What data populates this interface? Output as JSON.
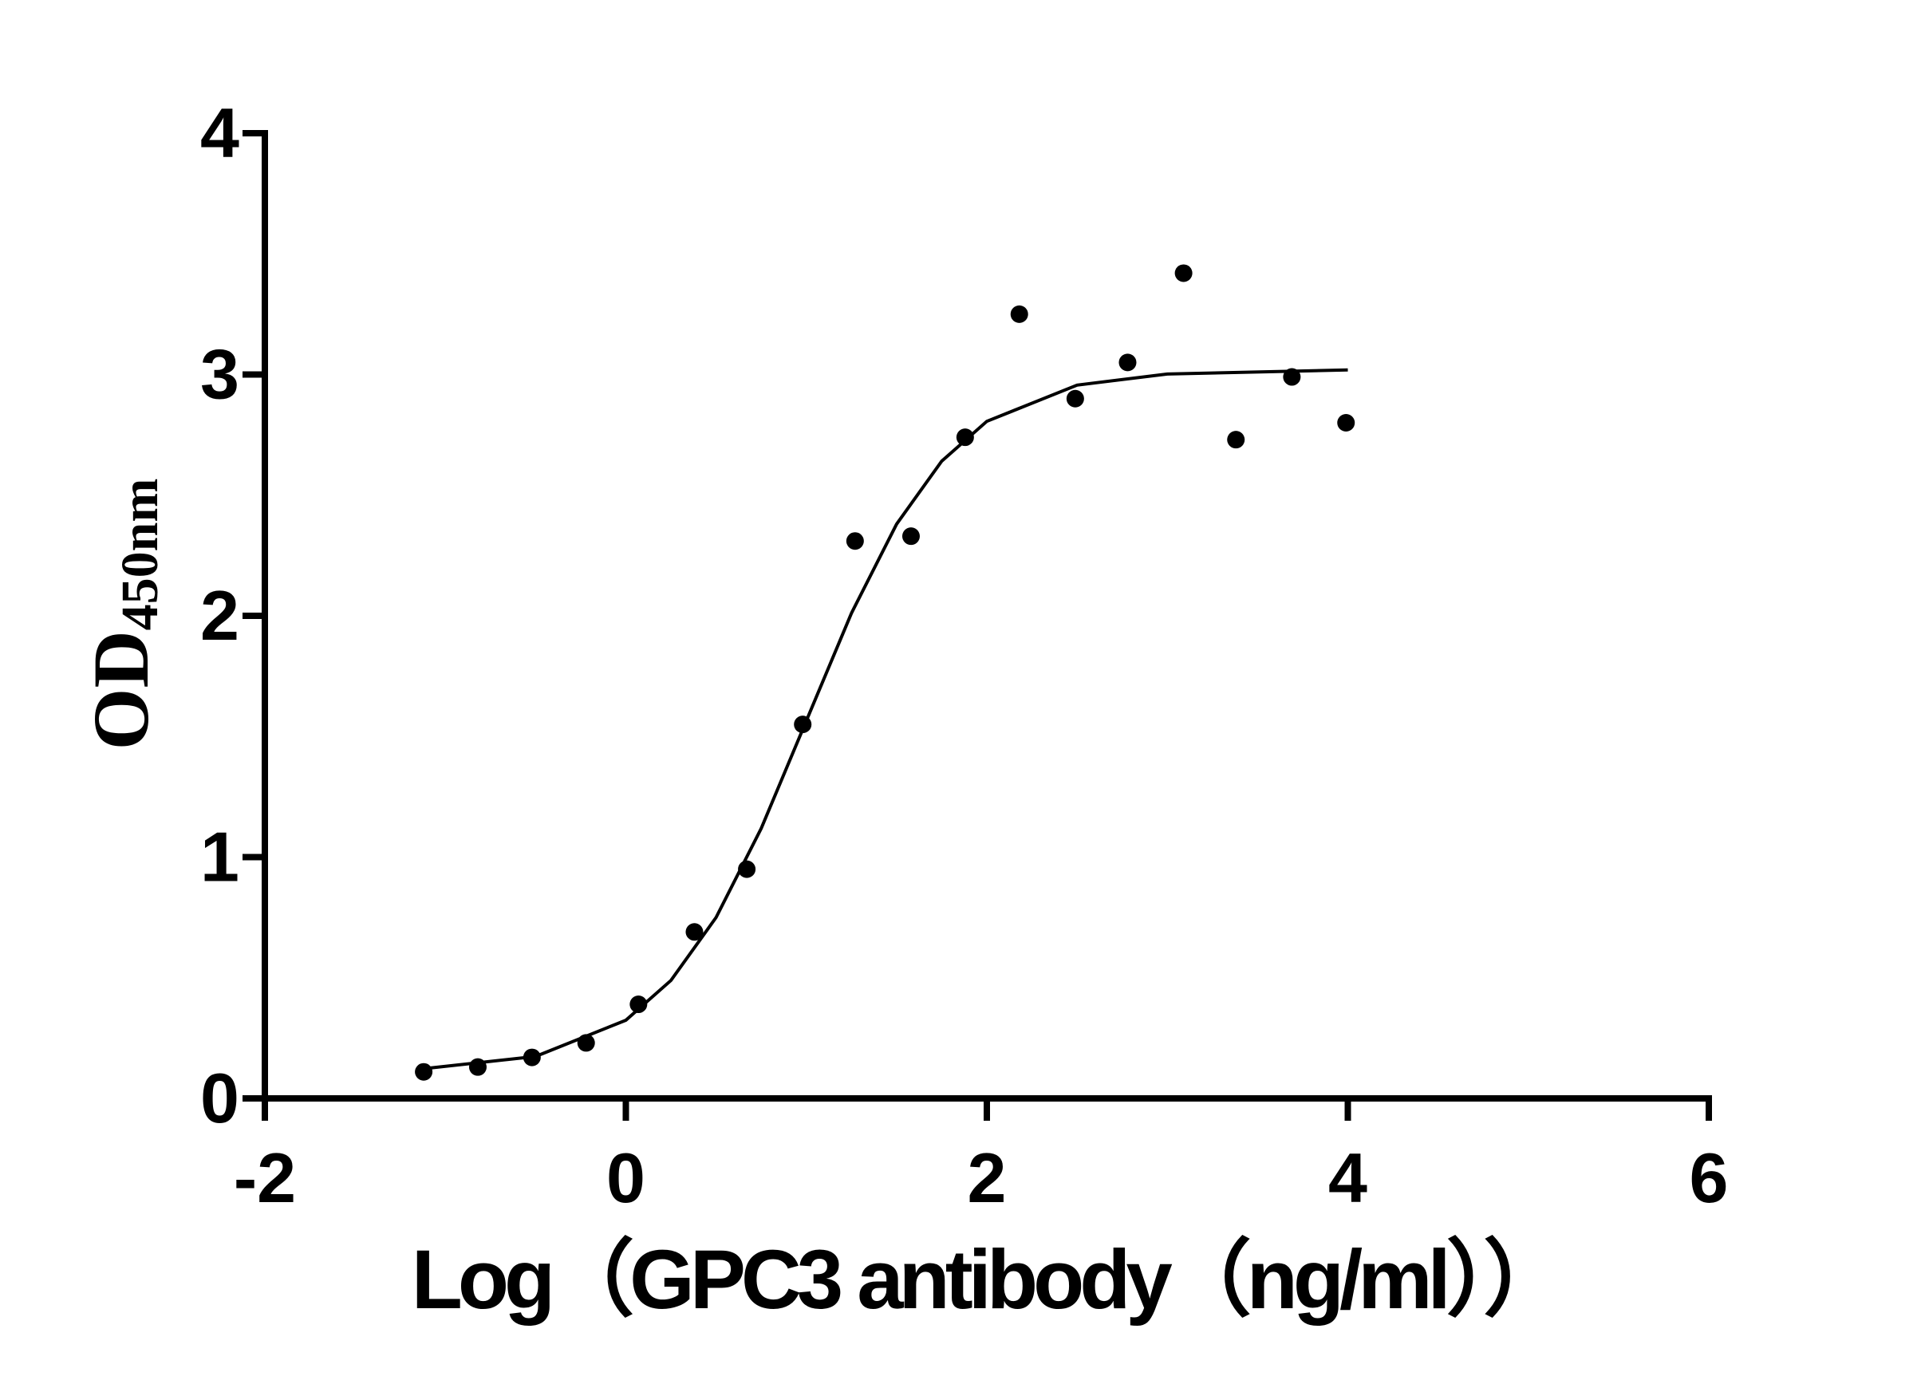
{
  "chart_data": {
    "type": "scatter",
    "x_label": "Log（GPC3 antibody（ng/ml））",
    "y_label": "OD",
    "y_label_subscript": "450nm",
    "xlim": [
      -2,
      6
    ],
    "xticks": [
      -2,
      0,
      2,
      4,
      6
    ],
    "ylim": [
      0,
      4
    ],
    "yticks": [
      0,
      1,
      2,
      3,
      4
    ],
    "series": [
      {
        "type": "scatter",
        "color": "#000000",
        "x": [
          -1.12,
          -0.82,
          -0.52,
          -0.22,
          0.07,
          0.38,
          0.67,
          0.98,
          1.27,
          1.58,
          1.88,
          2.18,
          2.49,
          2.78,
          3.09,
          3.38,
          3.69,
          3.99
        ],
        "values": [
          0.11,
          0.13,
          0.17,
          0.23,
          0.39,
          0.69,
          0.95,
          1.55,
          2.31,
          2.33,
          2.74,
          3.25,
          2.9,
          3.05,
          3.42,
          2.73,
          2.99,
          2.8
        ]
      },
      {
        "type": "line",
        "color": "#000000",
        "x": [
          -1.12,
          -0.5,
          0,
          0.25,
          0.5,
          0.75,
          1,
          1.25,
          1.5,
          1.75,
          2,
          2.5,
          3,
          4
        ],
        "values": [
          0.123,
          0.174,
          0.324,
          0.489,
          0.75,
          1.119,
          1.565,
          2.011,
          2.38,
          2.641,
          2.806,
          2.956,
          3.002,
          3.019
        ]
      }
    ]
  }
}
